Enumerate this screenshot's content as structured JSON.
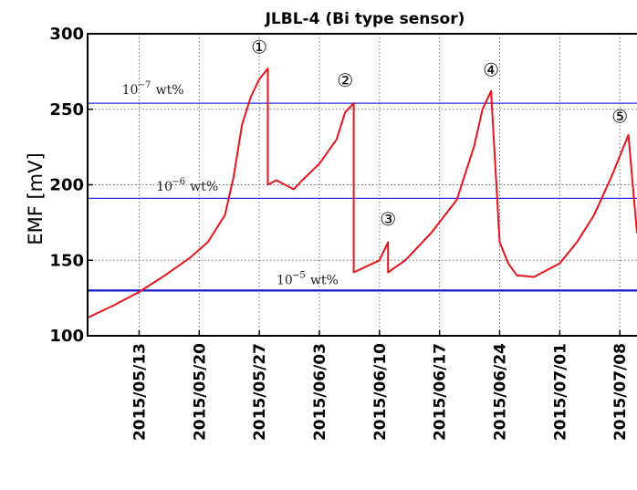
{
  "chart_data": {
    "type": "line",
    "title": "JLBL-4 (Bi type sensor)",
    "ylabel": "EMF [mV]",
    "xlabel": "",
    "ylim": [
      100,
      300
    ],
    "yticks": [
      100,
      150,
      200,
      250,
      300
    ],
    "ytick_labels": [
      "100",
      "150",
      "200",
      "250",
      "300"
    ],
    "xlim": [
      "2015-05-07",
      "2015-07-10"
    ],
    "xticks": [
      "2015-05-13",
      "2015-05-20",
      "2015-05-27",
      "2015-06-03",
      "2015-06-10",
      "2015-06-17",
      "2015-06-24",
      "2015-07-01",
      "2015-07-08"
    ],
    "xtick_labels": [
      "2015/05/13",
      "2015/05/20",
      "2015/05/27",
      "2015/06/03",
      "2015/06/10",
      "2015/06/17",
      "2015/06/24",
      "2015/07/01",
      "2015/07/08"
    ],
    "grid": true,
    "series": [
      {
        "color": "#e8141c",
        "points": [
          [
            "2015-05-07",
            112
          ],
          [
            "2015-05-10",
            120
          ],
          [
            "2015-05-13",
            129
          ],
          [
            "2015-05-16",
            140
          ],
          [
            "2015-05-19",
            152
          ],
          [
            "2015-05-21",
            162
          ],
          [
            "2015-05-23",
            180
          ],
          [
            "2015-05-24",
            205
          ],
          [
            "2015-05-25",
            240
          ],
          [
            "2015-05-26",
            258
          ],
          [
            "2015-05-27",
            270
          ],
          [
            "2015-05-28",
            277
          ],
          [
            "2015-05-28",
            200
          ],
          [
            "2015-05-29",
            203
          ],
          [
            "2015-05-31",
            197
          ],
          [
            "2015-06-01",
            203
          ],
          [
            "2015-06-03",
            214
          ],
          [
            "2015-06-05",
            230
          ],
          [
            "2015-06-06",
            248
          ],
          [
            "2015-06-07",
            254
          ],
          [
            "2015-06-07",
            142
          ],
          [
            "2015-06-10",
            150
          ],
          [
            "2015-06-11",
            162
          ],
          [
            "2015-06-11",
            142
          ],
          [
            "2015-06-13",
            150
          ],
          [
            "2015-06-16",
            168
          ],
          [
            "2015-06-19",
            190
          ],
          [
            "2015-06-21",
            225
          ],
          [
            "2015-06-22",
            250
          ],
          [
            "2015-06-23",
            262
          ],
          [
            "2015-06-24",
            162
          ],
          [
            "2015-06-25",
            148
          ],
          [
            "2015-06-26",
            140
          ],
          [
            "2015-06-28",
            139
          ],
          [
            "2015-07-01",
            148
          ],
          [
            "2015-07-03",
            162
          ],
          [
            "2015-07-05",
            180
          ],
          [
            "2015-07-07",
            205
          ],
          [
            "2015-07-09",
            233
          ],
          [
            "2015-07-10",
            168
          ]
        ]
      }
    ],
    "reference_lines": [
      {
        "y": 254,
        "label_base": "10",
        "label_exp": "−7",
        "label_unit": "wt%",
        "label_at": "2015-05-11",
        "label_y": 260,
        "color": "#2c2cd9",
        "lw": 1.3
      },
      {
        "y": 191,
        "label_base": "10",
        "label_exp": "−6",
        "label_unit": "wt%",
        "label_at": "2015-05-15",
        "label_y": 196,
        "color": "#2c2cd9",
        "lw": 1.3
      },
      {
        "y": 130,
        "label_base": "10",
        "label_exp": "−5",
        "label_unit": "wt%",
        "label_at": "2015-05-29",
        "label_y": 134,
        "color": "#1515cf",
        "lw": 2.2
      }
    ],
    "annotations": [
      {
        "text": "①",
        "x": "2015-05-27",
        "y": 287
      },
      {
        "text": "②",
        "x": "2015-06-06",
        "y": 265
      },
      {
        "text": "③",
        "x": "2015-06-11",
        "y": 173
      },
      {
        "text": "④",
        "x": "2015-06-23",
        "y": 272
      },
      {
        "text": "⑤",
        "x": "2015-07-08",
        "y": 241
      }
    ]
  }
}
